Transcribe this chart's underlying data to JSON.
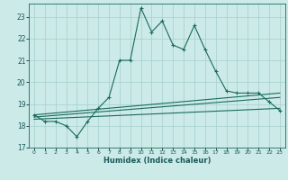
{
  "xlabel": "Humidex (Indice chaleur)",
  "background_color": "#cceae8",
  "line_color": "#1a6b5a",
  "grid_color": "#aad4d0",
  "xlim": [
    -0.5,
    23.5
  ],
  "ylim": [
    17,
    23.6
  ],
  "yticks": [
    17,
    18,
    19,
    20,
    21,
    22,
    23
  ],
  "xticks": [
    0,
    1,
    2,
    3,
    4,
    5,
    6,
    7,
    8,
    9,
    10,
    11,
    12,
    13,
    14,
    15,
    16,
    17,
    18,
    19,
    20,
    21,
    22,
    23
  ],
  "main_line": {
    "x": [
      0,
      1,
      2,
      3,
      4,
      5,
      6,
      7,
      8,
      9,
      10,
      11,
      12,
      13,
      14,
      15,
      16,
      17,
      18,
      19,
      20,
      21,
      22,
      23
    ],
    "y": [
      18.5,
      18.2,
      18.2,
      18.0,
      17.5,
      18.2,
      18.8,
      19.3,
      21.0,
      21.0,
      23.4,
      22.3,
      22.8,
      21.7,
      21.5,
      22.6,
      21.5,
      20.5,
      19.6,
      19.5,
      19.5,
      19.5,
      19.1,
      18.7
    ]
  },
  "band_lines": [
    {
      "x": [
        0,
        23
      ],
      "y": [
        18.5,
        19.5
      ]
    },
    {
      "x": [
        0,
        23
      ],
      "y": [
        18.4,
        19.3
      ]
    },
    {
      "x": [
        0,
        23
      ],
      "y": [
        18.3,
        18.8
      ]
    }
  ]
}
